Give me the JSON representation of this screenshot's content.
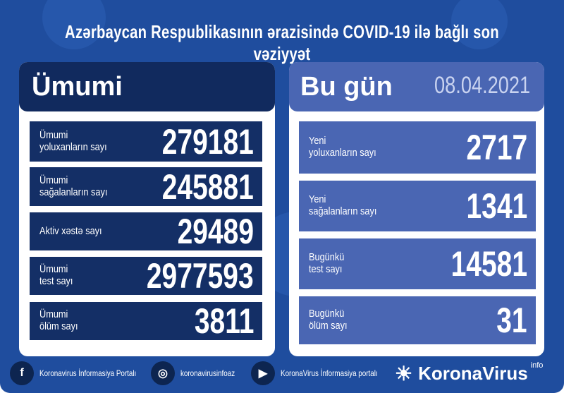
{
  "title": "Azərbaycan Respublikasının ərazisində COVID-19 ilə bağlı son vəziyyət",
  "total": {
    "heading": "Ümumi",
    "rows": [
      {
        "label1": "Ümumi",
        "label2": "yoluxanların sayı",
        "value": "279181"
      },
      {
        "label1": "Ümumi",
        "label2": "sağalanların sayı",
        "value": "245881"
      },
      {
        "label1": "Aktiv xəstə sayı",
        "label2": "",
        "value": "29489"
      },
      {
        "label1": "Ümumi",
        "label2": "test sayı",
        "value": "2977593"
      },
      {
        "label1": "Ümumi",
        "label2": "ölüm sayı",
        "value": "3811"
      }
    ]
  },
  "today": {
    "heading": "Bu gün",
    "date": "08.04.2021",
    "rows": [
      {
        "label1": "Yeni",
        "label2": "yoluxanların sayı",
        "value": "2717"
      },
      {
        "label1": "Yeni",
        "label2": "sağalanların sayı",
        "value": "1341"
      },
      {
        "label1": "Bugünkü",
        "label2": "test sayı",
        "value": "14581"
      },
      {
        "label1": "Bugünkü",
        "label2": "ölüm sayı",
        "value": "31"
      }
    ]
  },
  "footer": {
    "facebook": "Koronavirus İnformasiya Portalı",
    "instagram": "koronavirusinfoaz",
    "youtube": "KoronaVirus İnformasiya portalı",
    "logo": "KoronaVirus",
    "logo_sup": "info"
  },
  "colors": {
    "background": "#1f4d9e",
    "total_header": "#112a5e",
    "total_row": "#142f66",
    "today": "#4a66b3",
    "date": "#c9d3f0"
  }
}
